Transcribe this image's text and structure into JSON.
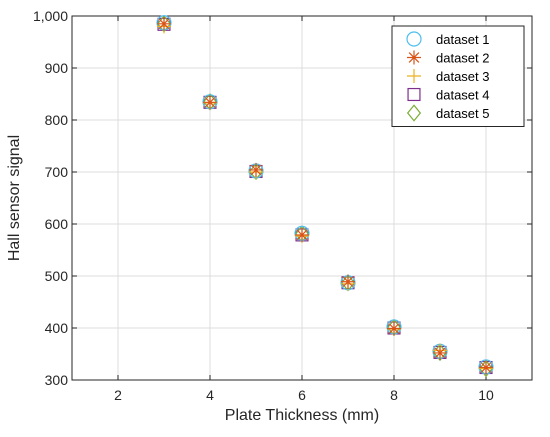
{
  "chart_data": {
    "type": "scatter",
    "title": "",
    "xlabel": "Plate Thickness (mm)",
    "ylabel": "Hall sensor signal",
    "xlim": [
      1,
      11
    ],
    "ylim": [
      300,
      1000
    ],
    "xticks": [
      2,
      4,
      6,
      8,
      10
    ],
    "yticks": [
      300,
      400,
      500,
      600,
      700,
      800,
      900,
      1000
    ],
    "xtick_labels": [
      "2",
      "4",
      "6",
      "8",
      "10"
    ],
    "ytick_labels": [
      "300",
      "400",
      "500",
      "600",
      "700",
      "800",
      "900",
      "1,000"
    ],
    "grid": true,
    "legend_position": "top-right",
    "x": [
      3,
      4,
      5,
      6,
      7,
      8,
      9,
      10
    ],
    "series": [
      {
        "name": "dataset 1",
        "marker": "circle",
        "color": "#4DBEEE",
        "values": [
          987,
          835,
          702,
          582,
          487,
          402,
          355,
          325
        ]
      },
      {
        "name": "dataset 2",
        "marker": "asterisk",
        "color": "#D95319",
        "values": [
          985,
          834,
          704,
          579,
          489,
          399,
          352,
          324
        ]
      },
      {
        "name": "dataset 3",
        "marker": "plus",
        "color": "#EDB120",
        "values": [
          980,
          833,
          700,
          577,
          485,
          398,
          357,
          322
        ]
      },
      {
        "name": "dataset 4",
        "marker": "square",
        "color": "#7E2F8E",
        "values": [
          984,
          834,
          701,
          579,
          487,
          400,
          353,
          324
        ]
      },
      {
        "name": "dataset 5",
        "marker": "diamond",
        "color": "#77AC30",
        "values": [
          985,
          835,
          701,
          581,
          487,
          401,
          353,
          322
        ]
      }
    ]
  }
}
